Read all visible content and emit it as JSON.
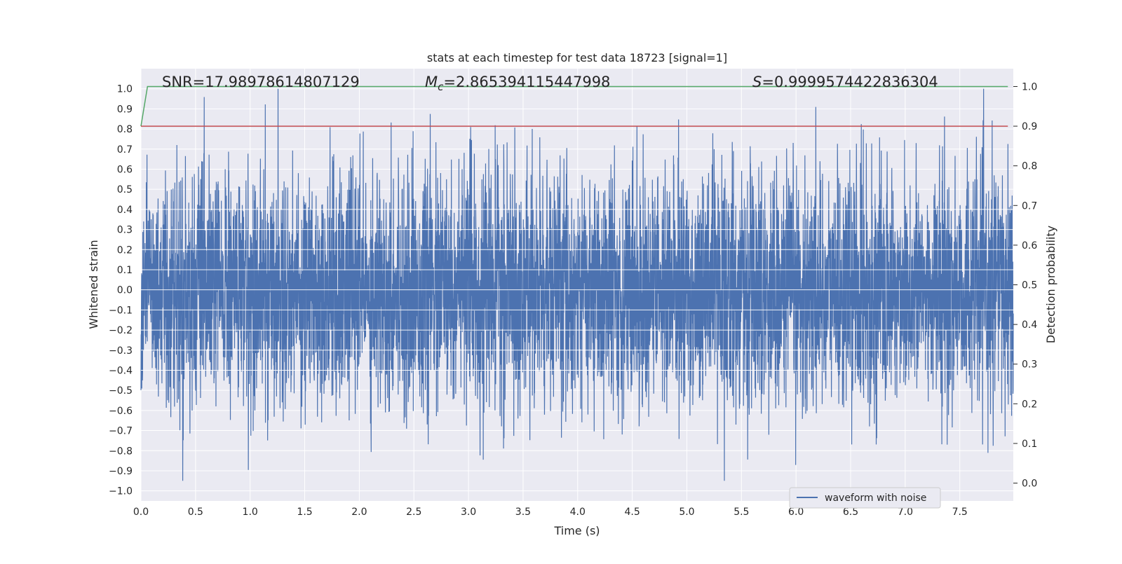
{
  "chart_data": {
    "type": "line",
    "title": "stats at each timestep for test data 18723 [signal=1]",
    "xlabel": "Time (s)",
    "ylabel": "Whitened strain",
    "y2label": "Detection probability",
    "xlim": [
      0.0,
      7.99
    ],
    "ylim": [
      -1.05,
      1.1
    ],
    "y2lim": [
      -0.045,
      1.045
    ],
    "x_ticks": [
      0.0,
      0.5,
      1.0,
      1.5,
      2.0,
      2.5,
      3.0,
      3.5,
      4.0,
      4.5,
      5.0,
      5.5,
      6.0,
      6.5,
      7.0,
      7.5
    ],
    "x_tick_labels": [
      "0.0",
      "0.5",
      "1.0",
      "1.5",
      "2.0",
      "2.5",
      "3.0",
      "3.5",
      "4.0",
      "4.5",
      "5.0",
      "5.5",
      "6.0",
      "6.5",
      "7.0",
      "7.5"
    ],
    "y_ticks": [
      -1.0,
      -0.9,
      -0.8,
      -0.7,
      -0.6,
      -0.5,
      -0.4,
      -0.3,
      -0.2,
      -0.1,
      0.0,
      0.1,
      0.2,
      0.3,
      0.4,
      0.5,
      0.6,
      0.7,
      0.8,
      0.9,
      1.0
    ],
    "y_tick_labels": [
      "−1.0",
      "−0.9",
      "−0.8",
      "−0.7",
      "−0.6",
      "−0.5",
      "−0.4",
      "−0.3",
      "−0.2",
      "−0.1",
      "0.0",
      "0.1",
      "0.2",
      "0.3",
      "0.4",
      "0.5",
      "0.6",
      "0.7",
      "0.8",
      "0.9",
      "1.0"
    ],
    "y2_ticks": [
      0.0,
      0.1,
      0.2,
      0.3,
      0.4,
      0.5,
      0.6,
      0.7,
      0.8,
      0.9,
      1.0
    ],
    "y2_tick_labels": [
      "0.0",
      "0.1",
      "0.2",
      "0.3",
      "0.4",
      "0.5",
      "0.6",
      "0.7",
      "0.8",
      "0.9",
      "1.0"
    ],
    "grid": true,
    "legend": {
      "position": "bottom-right",
      "entries": [
        "waveform with noise"
      ]
    },
    "annotations": {
      "snr": "SNR=17.98978614807129",
      "mc": "=2.865394115447998",
      "mc_symbol": "M",
      "mc_subscript": "c",
      "s": "=0.9999574422836304",
      "s_symbol": "S"
    },
    "series": [
      {
        "name": "waveform with noise",
        "axis": "left",
        "color": "#4c72b0",
        "sample_rate_hz": 2048,
        "duration_s": 7.99,
        "typical_abs_amplitude": 0.5,
        "min": -0.95,
        "max": 1.0
      },
      {
        "axis": "right",
        "color": "#55a868",
        "x": [
          0.0,
          0.06,
          7.94
        ],
        "y": [
          0.9,
          1.0,
          1.0
        ]
      },
      {
        "axis": "right",
        "color": "#c44e52",
        "x": [
          0.0,
          7.94
        ],
        "y": [
          0.9,
          0.9
        ]
      }
    ],
    "colors": {
      "axes_bg": "#eaeaf2",
      "grid": "#ffffff",
      "text": "#262626"
    }
  }
}
